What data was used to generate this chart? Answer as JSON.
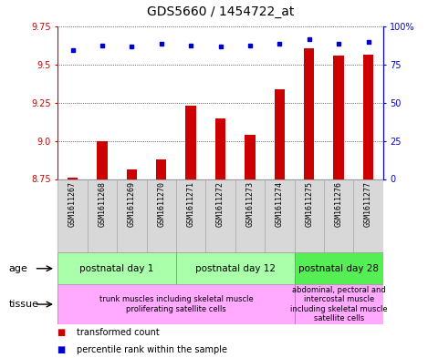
{
  "title": "GDS5660 / 1454722_at",
  "samples": [
    "GSM1611267",
    "GSM1611268",
    "GSM1611269",
    "GSM1611270",
    "GSM1611271",
    "GSM1611272",
    "GSM1611273",
    "GSM1611274",
    "GSM1611275",
    "GSM1611276",
    "GSM1611277"
  ],
  "transformed_count": [
    8.76,
    9.0,
    8.81,
    8.88,
    9.23,
    9.15,
    9.04,
    9.34,
    9.61,
    9.56,
    9.57
  ],
  "percentile_rank": [
    85,
    88,
    87,
    89,
    88,
    87,
    88,
    89,
    92,
    89,
    90
  ],
  "ylim_left": [
    8.75,
    9.75
  ],
  "ylim_right": [
    0,
    100
  ],
  "yticks_left": [
    8.75,
    9.0,
    9.25,
    9.5,
    9.75
  ],
  "yticks_right": [
    0,
    25,
    50,
    75,
    100
  ],
  "ytick_labels_right": [
    "0",
    "25",
    "50",
    "75",
    "100%"
  ],
  "bar_color": "#cc0000",
  "dot_color": "#0000cc",
  "bg_color": "#d8d8d8",
  "age_color_1": "#aaffaa",
  "age_color_2": "#55ee55",
  "tissue_color": "#ffaaff",
  "left_axis_color": "#cc0000",
  "right_axis_color": "#0000cc",
  "title_fontsize": 10,
  "tick_fontsize": 7,
  "sample_fontsize": 6,
  "row_fontsize": 7.5,
  "tissue_fontsize": 6,
  "legend_fontsize": 7,
  "bar_width": 0.35,
  "age_groups": [
    {
      "label": "postnatal day 1",
      "start": 0,
      "end": 3,
      "color_key": "age_color_1"
    },
    {
      "label": "postnatal day 12",
      "start": 4,
      "end": 7,
      "color_key": "age_color_1"
    },
    {
      "label": "postnatal day 28",
      "start": 8,
      "end": 10,
      "color_key": "age_color_2"
    }
  ],
  "tissue_groups": [
    {
      "label": "trunk muscles including skeletal muscle\nproliferating satellite cells",
      "start": 0,
      "end": 7,
      "color_key": "tissue_color"
    },
    {
      "label": "abdominal, pectoral and\nintercostal muscle\nincluding skeletal muscle\nsatellite cells",
      "start": 8,
      "end": 10,
      "color_key": "tissue_color"
    }
  ]
}
